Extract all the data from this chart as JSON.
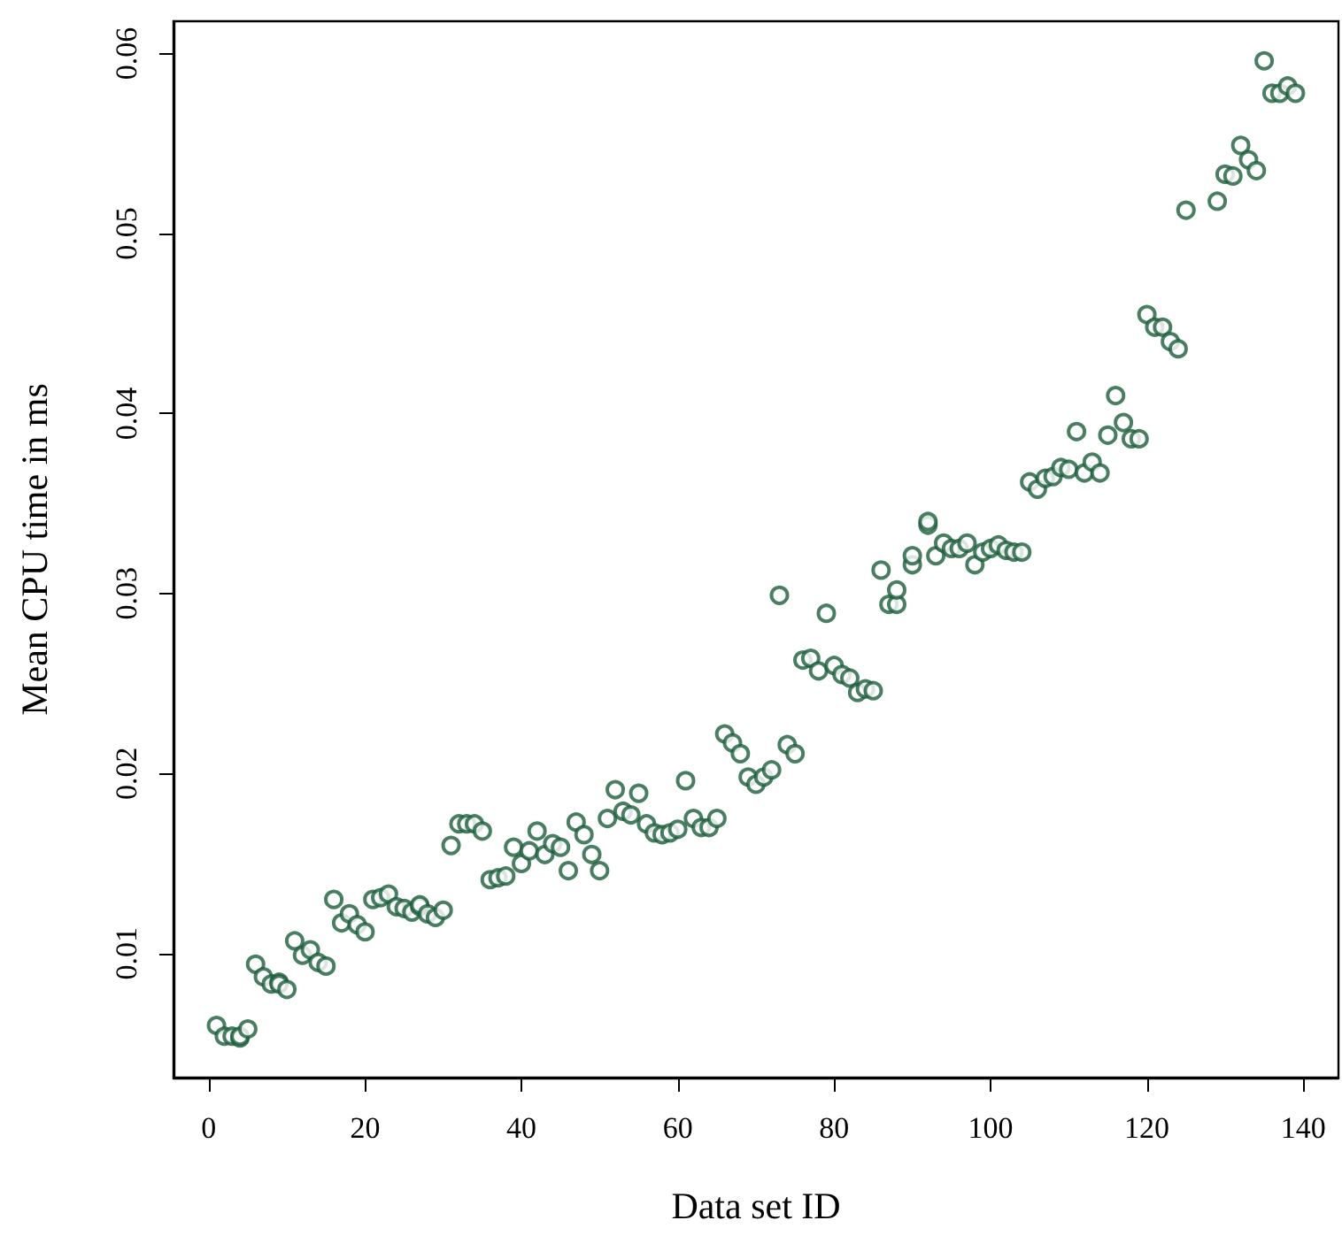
{
  "chart_data": {
    "type": "scatter",
    "xlabel": "Data set ID",
    "ylabel": "Mean CPU time in ms",
    "marker": "circle",
    "grid": false,
    "xlim": [
      -4.5,
      144.5
    ],
    "ylim": [
      0.0031,
      0.0618
    ],
    "xticks": [
      0,
      20,
      40,
      60,
      80,
      100,
      120,
      140
    ],
    "yticks": [
      0.01,
      0.02,
      0.03,
      0.04,
      0.05,
      0.06
    ],
    "x": [
      1,
      2,
      3,
      4,
      4,
      5,
      6,
      7,
      8,
      9,
      9,
      10,
      11,
      12,
      13,
      14,
      15,
      16,
      17,
      18,
      19,
      20,
      21,
      22,
      23,
      24,
      25,
      26,
      27,
      27,
      28,
      29,
      30,
      31,
      32,
      33,
      34,
      35,
      36,
      37,
      38,
      39,
      40,
      41,
      42,
      43,
      44,
      45,
      46,
      47,
      48,
      49,
      50,
      51,
      52,
      53,
      54,
      55,
      56,
      57,
      58,
      59,
      60,
      61,
      62,
      63,
      64,
      65,
      66,
      67,
      68,
      69,
      70,
      71,
      72,
      73,
      74,
      75,
      76,
      77,
      78,
      79,
      80,
      81,
      82,
      83,
      84,
      85,
      86,
      87,
      88,
      88,
      90,
      90,
      92,
      92,
      93,
      94,
      95,
      96,
      97,
      98,
      99,
      100,
      101,
      102,
      103,
      104,
      105,
      106,
      107,
      108,
      109,
      110,
      111,
      112,
      113,
      114,
      115,
      116,
      117,
      118,
      119,
      120,
      121,
      122,
      123,
      124,
      125,
      129,
      130,
      131,
      132,
      133,
      134,
      135,
      136,
      137,
      138,
      139
    ],
    "series": [
      {
        "color": "#1b5e3b",
        "values": [
          0.006,
          0.0054,
          0.0054,
          0.0053,
          0.0054,
          0.0058,
          0.0094,
          0.0087,
          0.0083,
          0.0084,
          0.0083,
          0.008,
          0.0107,
          0.0099,
          0.0102,
          0.0095,
          0.0093,
          0.013,
          0.0117,
          0.0122,
          0.0116,
          0.0112,
          0.013,
          0.0131,
          0.0133,
          0.0126,
          0.0125,
          0.0123,
          0.0126,
          0.0127,
          0.0122,
          0.012,
          0.0124,
          0.016,
          0.0172,
          0.0172,
          0.0172,
          0.0168,
          0.0141,
          0.0142,
          0.0143,
          0.0159,
          0.015,
          0.0157,
          0.0168,
          0.0155,
          0.0161,
          0.0159,
          0.0146,
          0.0173,
          0.0166,
          0.0155,
          0.0146,
          0.0175,
          0.0191,
          0.0179,
          0.0177,
          0.0189,
          0.0172,
          0.0167,
          0.0166,
          0.0167,
          0.0169,
          0.0196,
          0.0175,
          0.017,
          0.017,
          0.0175,
          0.0222,
          0.0217,
          0.0211,
          0.0198,
          0.0194,
          0.0198,
          0.0202,
          0.0299,
          0.0216,
          0.0211,
          0.0263,
          0.0264,
          0.0257,
          0.0289,
          0.026,
          0.0255,
          0.0253,
          0.0245,
          0.0247,
          0.0246,
          0.0313,
          0.0294,
          0.0294,
          0.0302,
          0.0316,
          0.0321,
          0.0338,
          0.034,
          0.0321,
          0.0328,
          0.0325,
          0.0325,
          0.0328,
          0.0316,
          0.0323,
          0.0325,
          0.0327,
          0.0324,
          0.0323,
          0.0323,
          0.0362,
          0.0358,
          0.0364,
          0.0365,
          0.037,
          0.0369,
          0.039,
          0.0367,
          0.0373,
          0.0367,
          0.0388,
          0.041,
          0.0395,
          0.0386,
          0.0386,
          0.0455,
          0.0448,
          0.0448,
          0.044,
          0.0436,
          0.0513,
          0.0518,
          0.0533,
          0.0532,
          0.0549,
          0.0541,
          0.0535,
          0.0596,
          0.0578,
          0.0578,
          0.0582,
          0.0578
        ]
      }
    ]
  }
}
